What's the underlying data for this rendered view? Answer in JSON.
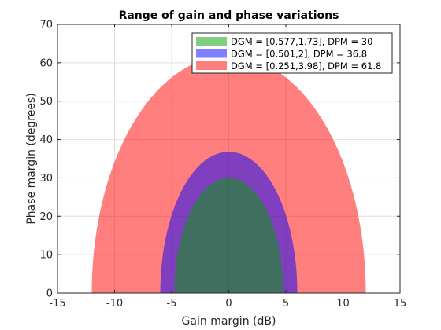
{
  "chart_data": {
    "type": "area",
    "title": "Range of gain and phase variations",
    "xlabel": "Gain margin (dB)",
    "ylabel": "Phase margin (degrees)",
    "xlim": [
      -15,
      15
    ],
    "ylim": [
      0,
      70
    ],
    "xticks": [
      -15,
      -10,
      -5,
      0,
      5,
      10,
      15
    ],
    "yticks": [
      0,
      10,
      20,
      30,
      40,
      50,
      60,
      70
    ],
    "grid": true,
    "legend_position": "top-right",
    "series": [
      {
        "name": "DGM = [0.577,1.73], DPM = 30",
        "color": "#00a000",
        "opacity": 0.5,
        "gain_margin_db": [
          -4.77,
          4.77
        ],
        "phase_margin_peak": 30
      },
      {
        "name": "DGM = [0.501,2], DPM = 36.8",
        "color": "#0000ff",
        "opacity": 0.5,
        "gain_margin_db": [
          -6.0,
          6.0
        ],
        "phase_margin_peak": 36.8
      },
      {
        "name": "DGM = [0.251,3.98], DPM = 61.8",
        "color": "#ff0000",
        "opacity": 0.5,
        "gain_margin_db": [
          -12.0,
          12.0
        ],
        "phase_margin_peak": 61.8
      }
    ]
  }
}
